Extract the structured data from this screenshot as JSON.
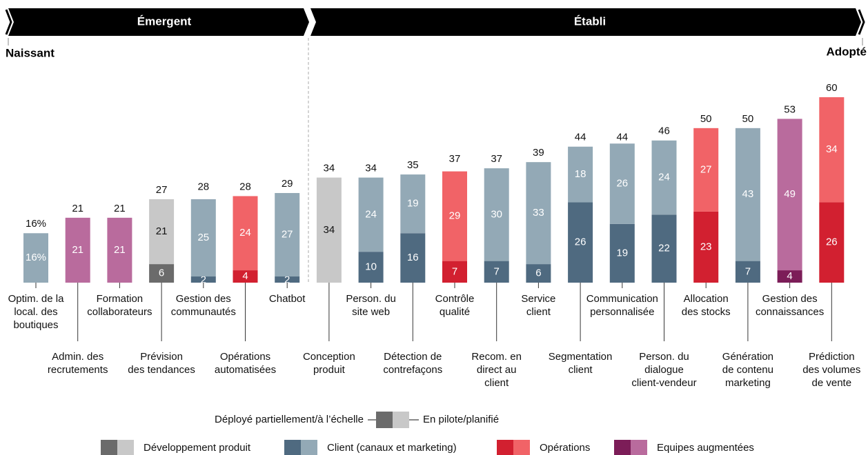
{
  "chart_data": {
    "type": "bar",
    "stacked": true,
    "stages": {
      "left": "Émergent",
      "right": "Établi",
      "start": "Naissant",
      "end": "Adopté"
    },
    "ylim": [
      0,
      60
    ],
    "groups": [
      {
        "name": "Développement produit",
        "colors": [
          "#6b6b6b",
          "#c8c8c8"
        ]
      },
      {
        "name": "Client (canaux et marketing)",
        "colors": [
          "#4f6a80",
          "#93a9b6"
        ]
      },
      {
        "name": "Opérations",
        "colors": [
          "#d22030",
          "#f16367"
        ]
      },
      {
        "name": "Equipes augmentées",
        "colors": [
          "#7c1d58",
          "#b96b9d"
        ]
      }
    ],
    "categories": [
      "Optim. de la\nlocal. des\nboutiques",
      "Admin. des\nrecrutements",
      "Formation\ncollaborateurs",
      "Prévision\ndes tendances",
      "Gestion des\ncommunautés",
      "Opérations\nautomatisées",
      "Chatbot",
      "Conception\nproduit",
      "Person. du\nsite web",
      "Détection de\ncontrefaçons",
      "Contrôle\nqualité",
      "Recom. en\ndirect au\nclient",
      "Service\nclient",
      "Segmentation\nclient",
      "Communication\npersonnalisée",
      "Person. du\ndialogue\nclient-vendeur",
      "Allocation\ndes stocks",
      "Génération\nde contenu\nmarketing",
      "Gestion des\nconnaissances",
      "Prédiction\ndes volumes\nde vente"
    ],
    "category_group": [
      1,
      3,
      3,
      0,
      1,
      2,
      1,
      0,
      1,
      1,
      2,
      1,
      1,
      1,
      1,
      1,
      2,
      1,
      3,
      2
    ],
    "series": [
      {
        "name": "Déployé partiellement/à l’échelle",
        "values": [
          null,
          null,
          null,
          6,
          2,
          4,
          2,
          null,
          10,
          16,
          7,
          7,
          6,
          26,
          19,
          22,
          23,
          7,
          4,
          26
        ]
      },
      {
        "name": "En pilote/planifié",
        "values": [
          16,
          21,
          21,
          21,
          25,
          24,
          27,
          34,
          24,
          19,
          29,
          30,
          33,
          18,
          26,
          24,
          27,
          43,
          49,
          34
        ],
        "value_labels": [
          "16%",
          "21",
          "21",
          "21",
          "25",
          "24",
          "27",
          "34",
          "24",
          "19",
          "29",
          "30",
          "33",
          "18",
          "26",
          "24",
          "27",
          "43",
          "49",
          "34"
        ]
      }
    ],
    "totals": [
      16,
      21,
      21,
      27,
      28,
      28,
      29,
      34,
      34,
      35,
      37,
      37,
      39,
      44,
      44,
      46,
      50,
      50,
      53,
      60
    ],
    "total_labels": [
      "16%",
      "21",
      "21",
      "27",
      "28",
      "28",
      "29",
      "34",
      "34",
      "35",
      "37",
      "37",
      "39",
      "44",
      "44",
      "46",
      "50",
      "50",
      "53",
      "60"
    ]
  }
}
